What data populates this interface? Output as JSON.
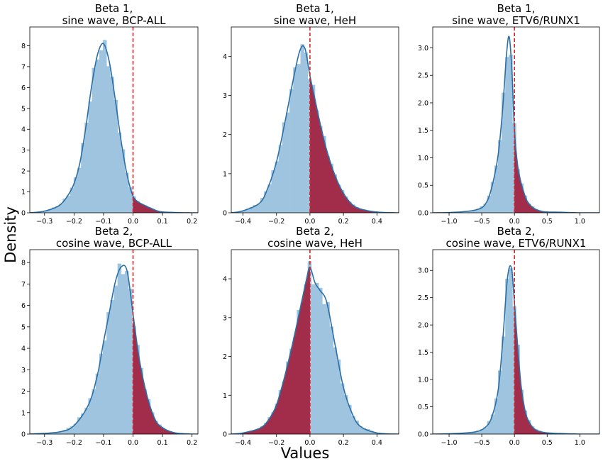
{
  "figure": {
    "xlabel": "Values",
    "ylabel": "Density",
    "bar_color": "#9ec4e0",
    "kde_color": "#2b6fa5",
    "shade_color": "#a31f3e",
    "line_color": "#d62728"
  },
  "chart_data": [
    {
      "type": "area",
      "title_lines": [
        "Beta 1,",
        "sine wave, BCP-ALL"
      ],
      "xlim": [
        -0.35,
        0.22
      ],
      "ylim": [
        0,
        8.9
      ],
      "xticks": [
        -0.3,
        -0.2,
        -0.1,
        0.0,
        0.1,
        0.2
      ],
      "xtick_labels": [
        "−0.3",
        "−0.2",
        "−0.1",
        "0.0",
        "0.1",
        "0.2"
      ],
      "yticks": [
        0,
        1,
        2,
        3,
        4,
        5,
        6,
        7,
        8
      ],
      "ytick_labels": [
        "0",
        "1",
        "2",
        "3",
        "4",
        "5",
        "6",
        "7",
        "8"
      ],
      "reference_line_x": 0.0,
      "shaded_region": "right",
      "kde_x": [
        -0.35,
        -0.3,
        -0.25,
        -0.22,
        -0.2,
        -0.18,
        -0.16,
        -0.14,
        -0.12,
        -0.1,
        -0.08,
        -0.06,
        -0.04,
        -0.02,
        0.0,
        0.02,
        0.04,
        0.06,
        0.08,
        0.1,
        0.15,
        0.2,
        0.22
      ],
      "kde_y": [
        0,
        0.08,
        0.35,
        0.85,
        1.4,
        2.4,
        4.1,
        6.1,
        7.6,
        8.1,
        7.2,
        5.4,
        3.4,
        1.8,
        0.8,
        0.5,
        0.35,
        0.22,
        0.1,
        0.04,
        0.01,
        0,
        0
      ]
    },
    {
      "type": "area",
      "title_lines": [
        "Beta 1,",
        "sine wave, HeH"
      ],
      "xlim": [
        -0.47,
        0.53
      ],
      "ylim": [
        0,
        4.75
      ],
      "xticks": [
        -0.4,
        -0.2,
        0.0,
        0.2,
        0.4
      ],
      "xtick_labels": [
        "−0.4",
        "−0.2",
        "0.0",
        "0.2",
        "0.4"
      ],
      "yticks": [
        0,
        1,
        2,
        3,
        4
      ],
      "ytick_labels": [
        "0",
        "1",
        "2",
        "3",
        "4"
      ],
      "reference_line_x": 0.0,
      "shaded_region": "right",
      "kde_x": [
        -0.47,
        -0.4,
        -0.3,
        -0.25,
        -0.2,
        -0.15,
        -0.1,
        -0.06,
        -0.03,
        0.0,
        0.03,
        0.06,
        0.1,
        0.15,
        0.2,
        0.25,
        0.3,
        0.4,
        0.53
      ],
      "kde_y": [
        0,
        0.05,
        0.25,
        0.65,
        1.3,
        2.3,
        3.4,
        4.15,
        4.2,
        3.5,
        2.9,
        2.3,
        1.6,
        0.95,
        0.5,
        0.22,
        0.1,
        0.02,
        0
      ]
    },
    {
      "type": "area",
      "title_lines": [
        "Beta 1,",
        "sine wave, ETV6/RUNX1"
      ],
      "xlim": [
        -1.25,
        1.3
      ],
      "ylim": [
        0,
        3.38
      ],
      "xticks": [
        -1.0,
        -0.5,
        0.0,
        0.5,
        1.0
      ],
      "xtick_labels": [
        "−1.0",
        "−0.5",
        "0.0",
        "0.5",
        "1.0"
      ],
      "yticks": [
        0,
        0.5,
        1.0,
        1.5,
        2.0,
        2.5,
        3.0
      ],
      "ytick_labels": [
        "0.0",
        "0.5",
        "1.0",
        "1.5",
        "2.0",
        "2.5",
        "3.0"
      ],
      "reference_line_x": 0.0,
      "shaded_region": "right",
      "kde_x": [
        -1.25,
        -0.9,
        -0.6,
        -0.45,
        -0.35,
        -0.25,
        -0.18,
        -0.12,
        -0.08,
        -0.04,
        0.0,
        0.05,
        0.1,
        0.15,
        0.2,
        0.3,
        0.45,
        0.7,
        1.0,
        1.3
      ],
      "kde_y": [
        0,
        0.01,
        0.05,
        0.15,
        0.45,
        1.05,
        1.9,
        2.9,
        3.2,
        2.6,
        1.5,
        0.85,
        0.55,
        0.35,
        0.2,
        0.08,
        0.02,
        0.01,
        0,
        0
      ]
    },
    {
      "type": "area",
      "title_lines": [
        "Beta 2,",
        "cosine wave, BCP-ALL"
      ],
      "xlim": [
        -0.35,
        0.22
      ],
      "ylim": [
        0,
        8.6
      ],
      "xticks": [
        -0.3,
        -0.2,
        -0.1,
        0.0,
        0.1,
        0.2
      ],
      "xtick_labels": [
        "−0.3",
        "−0.2",
        "−0.1",
        "0.0",
        "0.1",
        "0.2"
      ],
      "yticks": [
        0,
        1,
        2,
        3,
        4,
        5,
        6,
        7,
        8
      ],
      "ytick_labels": [
        "0",
        "1",
        "2",
        "3",
        "4",
        "5",
        "6",
        "7",
        "8"
      ],
      "reference_line_x": 0.0,
      "shaded_region": "right",
      "kde_x": [
        -0.35,
        -0.25,
        -0.2,
        -0.15,
        -0.12,
        -0.1,
        -0.08,
        -0.06,
        -0.04,
        -0.02,
        0.0,
        0.02,
        0.04,
        0.06,
        0.08,
        0.1,
        0.12,
        0.15,
        0.2,
        0.22
      ],
      "kde_y": [
        0,
        0.1,
        0.4,
        1.4,
        2.8,
        4.3,
        5.7,
        7.1,
        7.8,
        7.6,
        5.6,
        3.6,
        2.2,
        1.2,
        0.55,
        0.3,
        0.15,
        0.04,
        0,
        0
      ]
    },
    {
      "type": "area",
      "title_lines": [
        "Beta 2,",
        "cosine wave, HeH"
      ],
      "xlim": [
        -0.47,
        0.53
      ],
      "ylim": [
        0,
        4.75
      ],
      "xticks": [
        -0.4,
        -0.2,
        0.0,
        0.2,
        0.4
      ],
      "xtick_labels": [
        "−0.4",
        "−0.2",
        "0.0",
        "0.2",
        "0.4"
      ],
      "yticks": [
        0,
        1,
        2,
        3,
        4
      ],
      "ytick_labels": [
        "0",
        "1",
        "2",
        "3",
        "4"
      ],
      "reference_line_x": 0.0,
      "shaded_region": "left",
      "kde_x": [
        -0.47,
        -0.4,
        -0.3,
        -0.25,
        -0.2,
        -0.15,
        -0.1,
        -0.05,
        -0.02,
        0.0,
        0.03,
        0.06,
        0.1,
        0.15,
        0.2,
        0.25,
        0.3,
        0.4,
        0.53
      ],
      "kde_y": [
        0,
        0.03,
        0.15,
        0.35,
        0.75,
        1.5,
        2.4,
        3.4,
        4.0,
        4.3,
        3.9,
        3.7,
        3.4,
        2.3,
        1.2,
        0.55,
        0.2,
        0.03,
        0
      ]
    },
    {
      "type": "area",
      "title_lines": [
        "Beta 2,",
        "cosine wave, ETV6/RUNX1"
      ],
      "xlim": [
        -1.25,
        1.3
      ],
      "ylim": [
        0,
        3.38
      ],
      "xticks": [
        -1.0,
        -0.5,
        0.0,
        0.5,
        1.0
      ],
      "xtick_labels": [
        "−1.0",
        "−0.5",
        "0.0",
        "0.5",
        "1.0"
      ],
      "yticks": [
        0,
        0.5,
        1.0,
        1.5,
        2.0,
        2.5,
        3.0
      ],
      "ytick_labels": [
        "0.0",
        "0.5",
        "1.0",
        "1.5",
        "2.0",
        "2.5",
        "3.0"
      ],
      "reference_line_x": 0.0,
      "shaded_region": "right",
      "kde_x": [
        -1.25,
        -0.9,
        -0.6,
        -0.45,
        -0.35,
        -0.25,
        -0.18,
        -0.12,
        -0.08,
        -0.04,
        0.0,
        0.05,
        0.1,
        0.15,
        0.2,
        0.3,
        0.45,
        0.7,
        1.0,
        1.3
      ],
      "kde_y": [
        0,
        0.01,
        0.04,
        0.12,
        0.3,
        0.8,
        1.7,
        2.7,
        3.05,
        3.0,
        2.4,
        1.6,
        0.9,
        0.5,
        0.28,
        0.1,
        0.03,
        0.01,
        0,
        0
      ]
    }
  ]
}
